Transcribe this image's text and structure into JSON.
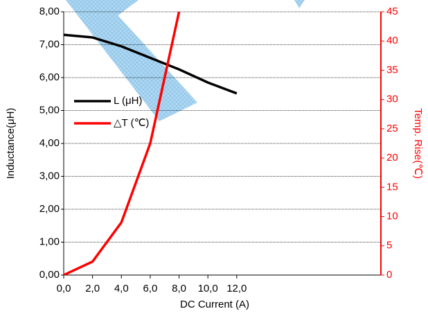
{
  "chart_data": {
    "type": "line",
    "xlabel": "DC Current (A)",
    "ylabel": "Inductance(μH)",
    "y2label": "Temp. Rise(℃)",
    "x": [
      0,
      2,
      4,
      6,
      8,
      10,
      12
    ],
    "series": [
      {
        "name": "L (μH)",
        "color": "#000000",
        "values": [
          7.3,
          7.22,
          6.95,
          6.6,
          6.25,
          5.85,
          5.52
        ]
      },
      {
        "name": "△T (℃)",
        "color": "#ff0000",
        "axis": "y2",
        "values": [
          0,
          2.3,
          9,
          22.5,
          45,
          null,
          null
        ]
      }
    ],
    "xlim": [
      0,
      22
    ],
    "xticks": [
      {
        "value": 0,
        "label": "0,0"
      },
      {
        "value": 2,
        "label": "2,0"
      },
      {
        "value": 4,
        "label": "4,0"
      },
      {
        "value": 6,
        "label": "6,0"
      },
      {
        "value": 8,
        "label": "8,0"
      },
      {
        "value": 10,
        "label": "10,0"
      },
      {
        "value": 12,
        "label": "12,0"
      }
    ],
    "ylim": [
      0,
      8
    ],
    "yticks": [
      {
        "value": 0,
        "label": "0,00"
      },
      {
        "value": 1,
        "label": "1,00"
      },
      {
        "value": 2,
        "label": "2,00"
      },
      {
        "value": 3,
        "label": "3,00"
      },
      {
        "value": 4,
        "label": "4,00"
      },
      {
        "value": 5,
        "label": "5,00"
      },
      {
        "value": 6,
        "label": "6,00"
      },
      {
        "value": 7,
        "label": "7,00"
      },
      {
        "value": 8,
        "label": "8,00"
      }
    ],
    "y2lim": [
      0,
      45
    ],
    "y2ticks": [
      0,
      5,
      10,
      15,
      20,
      25,
      30,
      35,
      40,
      45
    ],
    "y2color": "#ff0000",
    "grid": true,
    "legend": "left"
  }
}
